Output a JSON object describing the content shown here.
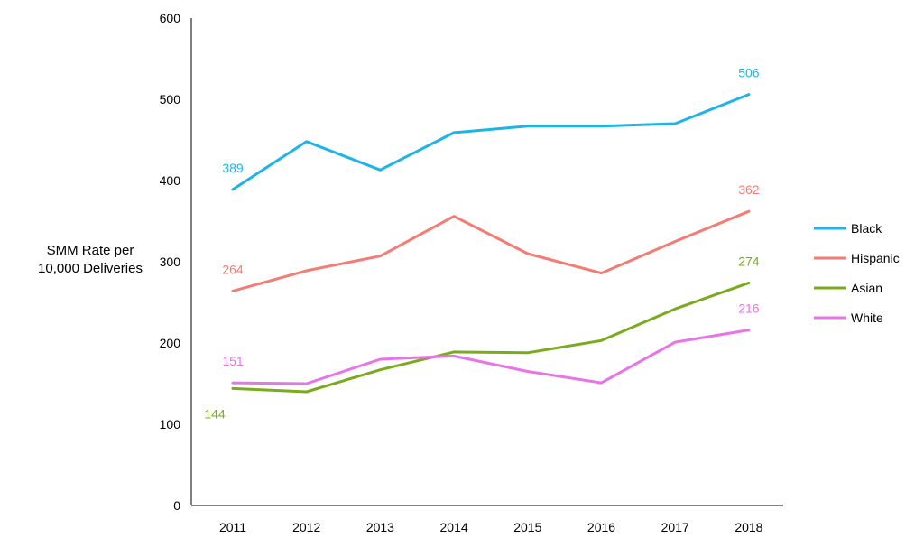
{
  "chart_data": {
    "type": "line",
    "title": "",
    "xlabel": "",
    "ylabel_line1": "SMM Rate per",
    "ylabel_line2": "10,000 Deliveries",
    "ylim": [
      0,
      600
    ],
    "yticks": [
      0,
      100,
      200,
      300,
      400,
      500,
      600
    ],
    "grid": false,
    "legend_position": "right",
    "categories": [
      "2011",
      "2012",
      "2013",
      "2014",
      "2015",
      "2016",
      "2017",
      "2018"
    ],
    "series": [
      {
        "name": "Black",
        "color": "#1fb4e8",
        "values": [
          389,
          448,
          413,
          459,
          467,
          467,
          470,
          506
        ],
        "first_label": "389",
        "last_label": "506"
      },
      {
        "name": "Hispanic",
        "color": "#f47c74",
        "values": [
          264,
          289,
          307,
          356,
          310,
          286,
          325,
          362
        ],
        "first_label": "264",
        "last_label": "362"
      },
      {
        "name": "Asian",
        "color": "#7aab1e",
        "values": [
          144,
          140,
          167,
          189,
          188,
          203,
          242,
          274
        ],
        "first_label": "144",
        "last_label": "274"
      },
      {
        "name": "White",
        "color": "#e874e8",
        "values": [
          151,
          150,
          180,
          184,
          165,
          151,
          201,
          216
        ],
        "first_label": "151",
        "last_label": "216"
      }
    ]
  }
}
